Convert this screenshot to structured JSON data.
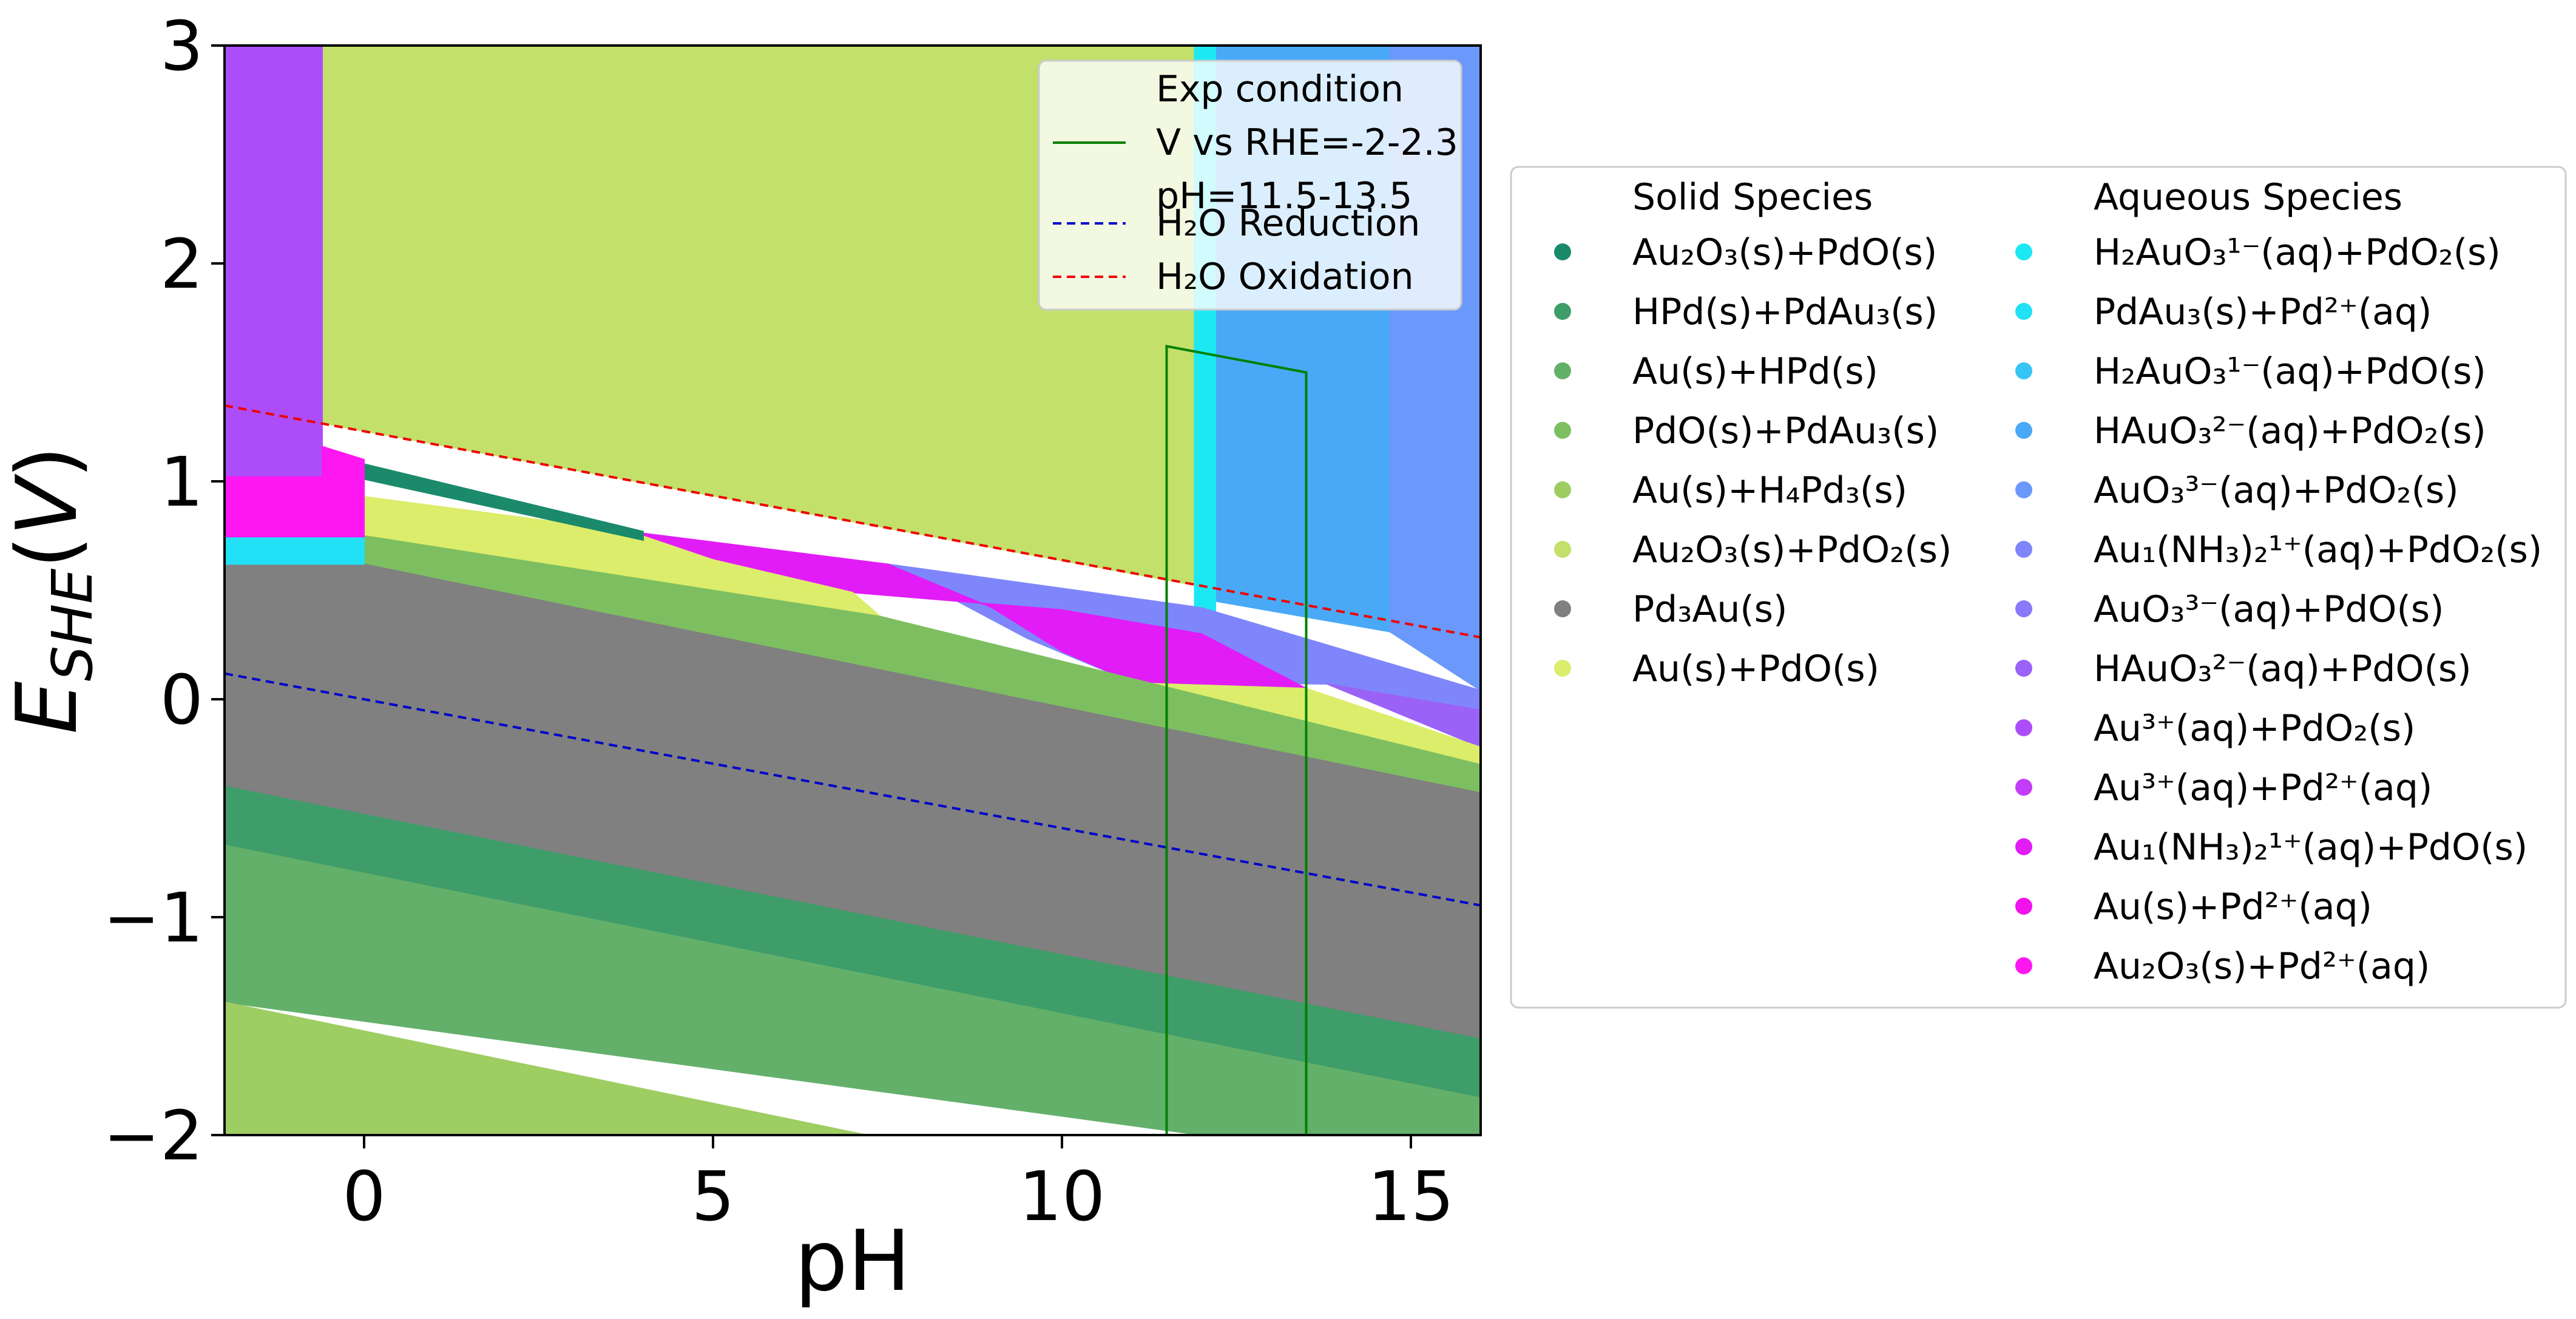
{
  "chart_data": {
    "type": "heatmap",
    "title": "",
    "xlabel": "pH",
    "ylabel": "E_SHE(V)",
    "xlim": [
      -2,
      16
    ],
    "ylim": [
      -2,
      3
    ],
    "xticks": [
      0,
      5,
      10,
      15
    ],
    "yticks": [
      -2,
      -1,
      0,
      1,
      2,
      3
    ],
    "xtick_labels": [
      "0",
      "5",
      "10",
      "15"
    ],
    "ytick_labels": [
      "−2",
      "−1",
      "0",
      "1",
      "2",
      "3"
    ],
    "grid": false,
    "legend_position": "top-right inside plot",
    "legend_entries": [
      {
        "text": "Exp condition\nV vs RHE=-2-2.3\npH=11.5-13.5",
        "color": "#008000",
        "style": "solid"
      },
      {
        "text": "H₂O Reduction",
        "color": "#0000cc",
        "style": "dashed"
      },
      {
        "text": "H₂O Oxidation",
        "color": "#ee0000",
        "style": "dashed"
      }
    ],
    "lines": [
      {
        "name": "H₂O Reduction",
        "color": "#0000cc",
        "dash": true,
        "x": [
          -2,
          16
        ],
        "y": [
          0.118,
          -0.946
        ]
      },
      {
        "name": "H₂O Oxidation",
        "color": "#ee0000",
        "dash": true,
        "x": [
          -2,
          16
        ],
        "y": [
          1.348,
          0.284
        ]
      },
      {
        "name": "Exp condition",
        "color": "#008000",
        "dash": false,
        "x": [
          11.5,
          11.5,
          13.5,
          13.5,
          11.5
        ],
        "y": [
          -2,
          1.62,
          1.5,
          -2,
          -2
        ]
      }
    ],
    "regions": [
      {
        "species": "Au2O3(s)+PdO2(s)",
        "color": "#c2e06a",
        "points": [
          [
            -2,
            3
          ],
          [
            16,
            3
          ],
          [
            16,
            0.28
          ],
          [
            -2,
            1.35
          ]
        ]
      },
      {
        "species": "HAuO3 2−(aq)+PdO2(s)",
        "color": "#4aa9f6",
        "points": [
          [
            12.2,
            3
          ],
          [
            14.7,
            3
          ],
          [
            14.7,
            0.31
          ],
          [
            12.2,
            0.45
          ]
        ]
      },
      {
        "species": "AuO3 3−(aq)+PdO2(s)",
        "color": "#6a99fb",
        "points": [
          [
            14.7,
            3
          ],
          [
            16,
            3
          ],
          [
            16,
            0.04
          ],
          [
            14.7,
            0.31
          ]
        ]
      },
      {
        "species": "H2AuO3 1−(aq)+PdO2(s)",
        "color": "#1ce8f4",
        "points": [
          [
            11.9,
            3
          ],
          [
            12.2,
            3
          ],
          [
            12.2,
            0.27
          ],
          [
            11.9,
            0.3
          ]
        ]
      },
      {
        "species": "Au1(NH3)2 1+(aq)+PdO2(s)",
        "color": "#7f86fb",
        "points": [
          [
            7.5,
            0.62
          ],
          [
            12,
            0.42
          ],
          [
            16,
            0.04
          ],
          [
            16,
            -0.05
          ],
          [
            13.8,
            0.07
          ],
          [
            11,
            0.08
          ],
          [
            9.5,
            0.28
          ]
        ]
      },
      {
        "species": "HAuO3 2−(aq)+PdO(s)",
        "color": "#9b62f7",
        "points": [
          [
            13.8,
            0.07
          ],
          [
            16,
            -0.05
          ],
          [
            16,
            -0.22
          ]
        ]
      },
      {
        "species": "Au1(NH3)2 1+(aq)+PdO(s)",
        "color": "#e21cf6",
        "points": [
          [
            3.8,
            0.77
          ],
          [
            7.5,
            0.62
          ],
          [
            9,
            0.42
          ],
          [
            10,
            0.22
          ],
          [
            11,
            0.08
          ],
          [
            13.5,
            0.05
          ],
          [
            12,
            0.3
          ],
          [
            10,
            0.41
          ],
          [
            7,
            0.49
          ],
          [
            5,
            0.64
          ]
        ]
      },
      {
        "species": "Au(s)+PdO(s)",
        "color": "#dced6b",
        "points": [
          [
            0,
            0.93
          ],
          [
            3.8,
            0.77
          ],
          [
            5,
            0.64
          ],
          [
            7,
            0.49
          ],
          [
            7.4,
            0.38
          ],
          [
            0,
            0.75
          ]
        ]
      },
      {
        "species": "Au(s)+PdO(s)",
        "color": "#dced6b",
        "points": [
          [
            10.5,
            0.08
          ],
          [
            13.5,
            0.05
          ],
          [
            16,
            -0.22
          ],
          [
            16,
            -0.3
          ],
          [
            11.5,
            -0.1
          ]
        ]
      },
      {
        "species": "Au2O3(s)+PdO(s)",
        "color": "#1a8a6a",
        "points": [
          [
            0,
            1.08
          ],
          [
            4,
            0.77
          ],
          [
            4,
            0.73
          ],
          [
            0,
            1.01
          ]
        ]
      },
      {
        "species": "PdO(s)+PdAu3(s)",
        "color": "#7dbf60",
        "points": [
          [
            0,
            0.75
          ],
          [
            7.4,
            0.38
          ],
          [
            16,
            -0.3
          ],
          [
            16,
            -0.43
          ],
          [
            0,
            0.62
          ]
        ]
      },
      {
        "species": "Pd3Au(s)",
        "color": "#808080",
        "points": [
          [
            -2,
            0.62
          ],
          [
            0,
            0.62
          ],
          [
            16,
            -0.43
          ],
          [
            16,
            -1.56
          ],
          [
            -2,
            -0.4
          ]
        ]
      },
      {
        "species": "HPd(s)+PdAu3(s)",
        "color": "#3e9d69",
        "points": [
          [
            -2,
            -0.4
          ],
          [
            16,
            -1.56
          ],
          [
            16,
            -1.83
          ],
          [
            -2,
            -0.67
          ]
        ]
      },
      {
        "species": "Au(s)+HPd(s)",
        "color": "#63b06a",
        "points": [
          [
            -2,
            -0.67
          ],
          [
            16,
            -1.83
          ],
          [
            16,
            -2
          ],
          [
            12,
            -2
          ],
          [
            -2,
            -1.39
          ]
        ]
      },
      {
        "species": "Au(s)+H4Pd3(s)",
        "color": "#9ecd62",
        "points": [
          [
            -2,
            -1.39
          ],
          [
            7.2,
            -2
          ],
          [
            -2,
            -2
          ]
        ]
      },
      {
        "species": "Au3+(aq)+PdO2(s)",
        "color": "#ad4df9",
        "points": [
          [
            -2,
            3
          ],
          [
            -0.6,
            3
          ],
          [
            -0.6,
            1.02
          ],
          [
            -2,
            1.02
          ]
        ]
      },
      {
        "species": "Au2O3(s)+Pd2+(aq)",
        "color": "#fe17f1",
        "points": [
          [
            -0.6,
            1.16
          ],
          [
            0,
            1.1
          ],
          [
            0,
            0.74
          ],
          [
            -2,
            0.74
          ],
          [
            -2,
            1.02
          ],
          [
            -0.6,
            1.02
          ]
        ]
      },
      {
        "species": "PdAu3(s)+Pd2+(aq)",
        "color": "#22e0f5",
        "points": [
          [
            -2,
            0.74
          ],
          [
            0,
            0.74
          ],
          [
            0,
            0.62
          ],
          [
            -2,
            0.62
          ]
        ]
      }
    ],
    "legend_solid": {
      "heading": "Solid Species",
      "items": [
        {
          "label": "Au₂O₃(s)+PdO(s)",
          "color": "#1a8a6a"
        },
        {
          "label": "HPd(s)+PdAu₃(s)",
          "color": "#3e9d69"
        },
        {
          "label": "Au(s)+HPd(s)",
          "color": "#63b06a"
        },
        {
          "label": "PdO(s)+PdAu₃(s)",
          "color": "#7dbf60"
        },
        {
          "label": "Au(s)+H₄Pd₃(s)",
          "color": "#9ecd62"
        },
        {
          "label": "Au₂O₃(s)+PdO₂(s)",
          "color": "#c2e06a"
        },
        {
          "label": "Pd₃Au(s)",
          "color": "#808080"
        },
        {
          "label": "Au(s)+PdO(s)",
          "color": "#dced6b"
        }
      ]
    },
    "legend_aqueous": {
      "heading": "Aqueous Species",
      "items": [
        {
          "label": "H₂AuO₃¹⁻(aq)+PdO₂(s)",
          "color": "#1ce8f4"
        },
        {
          "label": "PdAu₃(s)+Pd²⁺(aq)",
          "color": "#22e0f5"
        },
        {
          "label": "H₂AuO₃¹⁻(aq)+PdO(s)",
          "color": "#35c4f4"
        },
        {
          "label": "HAuO₃²⁻(aq)+PdO₂(s)",
          "color": "#4aa9f6"
        },
        {
          "label": "AuO₃³⁻(aq)+PdO₂(s)",
          "color": "#6a99fb"
        },
        {
          "label": "Au₁(NH₃)₂¹⁺(aq)+PdO₂(s)",
          "color": "#7f86fb"
        },
        {
          "label": "AuO₃³⁻(aq)+PdO(s)",
          "color": "#8a79f9"
        },
        {
          "label": "HAuO₃²⁻(aq)+PdO(s)",
          "color": "#9b62f7"
        },
        {
          "label": "Au³⁺(aq)+PdO₂(s)",
          "color": "#ad4df9"
        },
        {
          "label": "Au³⁺(aq)+Pd²⁺(aq)",
          "color": "#c33df8"
        },
        {
          "label": "Au₁(NH₃)₂¹⁺(aq)+PdO(s)",
          "color": "#e21cf6"
        },
        {
          "label": "Au(s)+Pd²⁺(aq)",
          "color": "#f212ee"
        },
        {
          "label": "Au₂O₃(s)+Pd²⁺(aq)",
          "color": "#fe17f1"
        }
      ]
    }
  }
}
